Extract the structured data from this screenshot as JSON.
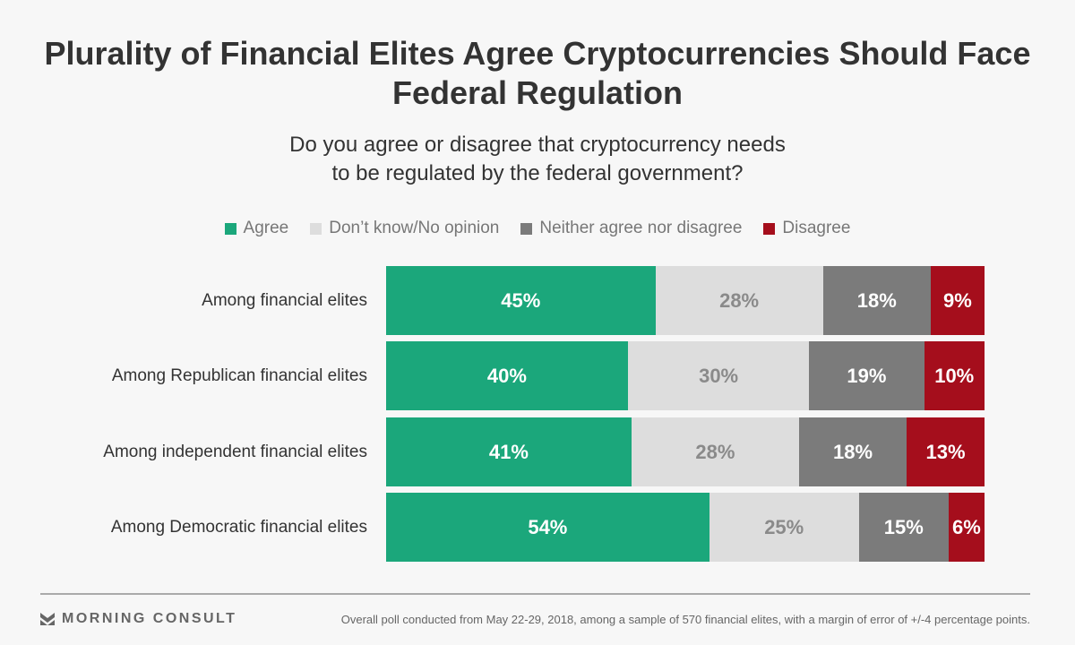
{
  "chart_data": {
    "type": "bar",
    "orientation": "horizontal-stacked-100",
    "title": "Plurality of Financial Elites Agree Cryptocurrencies Should Face Federal Regulation",
    "subtitle_lines": [
      "Do you agree or disagree that cryptocurrency needs",
      "to be regulated by the federal government?"
    ],
    "categories": [
      "Among financial elites",
      "Among Republican financial elites",
      "Among independent financial elites",
      "Among Democratic financial elites"
    ],
    "series": [
      {
        "name": "Agree",
        "color": "#1ba77b",
        "text_color": "#ffffff",
        "values": [
          45,
          40,
          41,
          54
        ]
      },
      {
        "name": "Don’t know/No opinion",
        "color": "#dddddd",
        "text_color": "#8a8a8a",
        "values": [
          28,
          30,
          28,
          25
        ]
      },
      {
        "name": "Neither agree nor disagree",
        "color": "#7b7b7b",
        "text_color": "#ffffff",
        "values": [
          18,
          19,
          18,
          15
        ]
      },
      {
        "name": "Disagree",
        "color": "#a50e1c",
        "text_color": "#ffffff",
        "values": [
          9,
          10,
          13,
          6
        ]
      }
    ],
    "legend_position": "top-center",
    "value_suffix": "%"
  },
  "footer": {
    "brand": "MORNING CONSULT",
    "note": "Overall poll conducted from May 22-29, 2018, among a sample of 570 financial elites, with a margin of error of +/-4 percentage points."
  }
}
